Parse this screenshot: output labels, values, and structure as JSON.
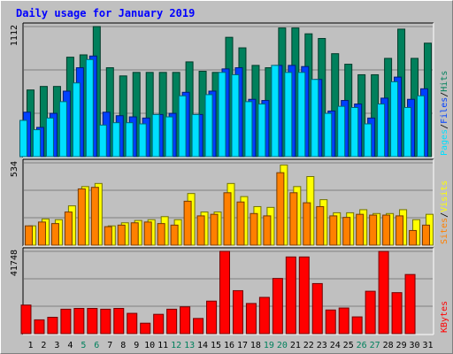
{
  "title": "Daily usage for January 2019",
  "colors": {
    "background": "#c0c0c0",
    "title": "#0000ff",
    "hits": "#00805c",
    "files": "#0040ff",
    "pages": "#00e0ff",
    "visits": "#ffff00",
    "sites": "#ff8000",
    "kbytes": "#ff0000",
    "weekend_label": "#00805c"
  },
  "chart_data": [
    {
      "type": "bar",
      "panel": "hits-files-pages",
      "ymax_label": "1112",
      "ylim": [
        0,
        1112
      ],
      "legend": [
        "Pages",
        "/",
        "Files",
        "/",
        "Hits"
      ],
      "categories": [
        "1",
        "2",
        "3",
        "4",
        "5",
        "6",
        "7",
        "8",
        "9",
        "10",
        "11",
        "12",
        "13",
        "14",
        "15",
        "16",
        "17",
        "18",
        "19",
        "20",
        "21",
        "22",
        "23",
        "24",
        "25",
        "26",
        "27",
        "28",
        "29",
        "30",
        "31"
      ],
      "series": [
        {
          "name": "Hits",
          "values": [
            570,
            600,
            600,
            850,
            870,
            1112,
            760,
            690,
            720,
            720,
            720,
            720,
            810,
            730,
            720,
            1020,
            930,
            780,
            760,
            1100,
            1100,
            1050,
            1010,
            880,
            790,
            700,
            700,
            840,
            1090,
            840,
            970
          ]
        },
        {
          "name": "Files",
          "values": [
            380,
            250,
            370,
            560,
            760,
            860,
            380,
            350,
            340,
            330,
            360,
            370,
            550,
            360,
            560,
            750,
            760,
            490,
            480,
            780,
            780,
            770,
            660,
            390,
            480,
            450,
            330,
            500,
            680,
            490,
            580
          ]
        },
        {
          "name": "Pages",
          "values": [
            310,
            230,
            330,
            470,
            630,
            830,
            270,
            290,
            290,
            280,
            360,
            340,
            520,
            360,
            530,
            720,
            700,
            470,
            450,
            780,
            720,
            720,
            660,
            370,
            430,
            420,
            280,
            450,
            640,
            420,
            520
          ]
        }
      ]
    },
    {
      "type": "bar",
      "panel": "visits-sites",
      "ymax_label": "534",
      "ylim": [
        0,
        534
      ],
      "legend": [
        "Sites",
        "/",
        "Visits"
      ],
      "categories": [
        "1",
        "2",
        "3",
        "4",
        "5",
        "6",
        "7",
        "8",
        "9",
        "10",
        "11",
        "12",
        "13",
        "14",
        "15",
        "16",
        "17",
        "18",
        "19",
        "20",
        "21",
        "22",
        "23",
        "24",
        "25",
        "26",
        "27",
        "28",
        "29",
        "30",
        "31"
      ],
      "series": [
        {
          "name": "Visits",
          "values": [
            125,
            170,
            165,
            255,
            380,
            400,
            125,
            145,
            160,
            165,
            185,
            165,
            335,
            215,
            215,
            400,
            315,
            250,
            245,
            520,
            380,
            445,
            295,
            210,
            210,
            230,
            205,
            205,
            230,
            165,
            200
          ]
        },
        {
          "name": "Sites",
          "values": [
            125,
            150,
            140,
            215,
            365,
            375,
            120,
            130,
            145,
            150,
            140,
            130,
            285,
            190,
            200,
            340,
            280,
            205,
            190,
            470,
            340,
            275,
            250,
            190,
            180,
            200,
            195,
            195,
            190,
            95,
            130
          ]
        }
      ]
    },
    {
      "type": "bar",
      "panel": "kbytes",
      "ymax_label": "41748",
      "ylim": [
        0,
        41748
      ],
      "legend": [
        "KBytes"
      ],
      "categories": [
        "1",
        "2",
        "3",
        "4",
        "5",
        "6",
        "7",
        "8",
        "9",
        "10",
        "11",
        "12",
        "13",
        "14",
        "15",
        "16",
        "17",
        "18",
        "19",
        "20",
        "21",
        "22",
        "23",
        "24",
        "25",
        "26",
        "27",
        "28",
        "29",
        "30",
        "31"
      ],
      "series": [
        {
          "name": "KBytes",
          "values": [
            14500,
            7000,
            8300,
            12400,
            12800,
            12800,
            12400,
            12800,
            10300,
            5300,
            9800,
            12400,
            13600,
            7700,
            16500,
            41748,
            21800,
            15300,
            18400,
            28000,
            38900,
            38900,
            25400,
            12000,
            13000,
            8500,
            21500,
            41700,
            20800,
            30000,
            0
          ]
        }
      ]
    }
  ],
  "weekend_days": [
    "5",
    "6",
    "12",
    "13",
    "19",
    "20",
    "26",
    "27"
  ]
}
